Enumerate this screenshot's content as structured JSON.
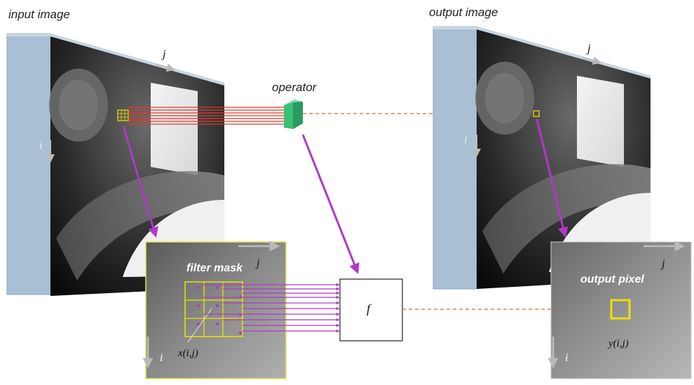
{
  "labels": {
    "input_image": "input image",
    "output_image": "output image",
    "operator": "operator",
    "filter_mask": "filter mask",
    "output_pixel": "output pixel",
    "function": "f",
    "input_pixel_symbol": "x(i,j)",
    "output_pixel_symbol": "y(i,j)",
    "axis_j": "j",
    "axis_i": "i"
  },
  "colors": {
    "frame_blue": "#a9bfd3",
    "frame_dark": "#8fa6bb",
    "mask_grid": "#e6e600",
    "arrow_magenta": "#b038c8",
    "ray_red": "#e03a2a",
    "ray_dashed": "#e87a55",
    "operator_green": "#3cbf78",
    "pixel_yellow": "#f0e000"
  },
  "icons": {
    "operator": "operator-prism-icon",
    "axis_arrow": "gray-axis-arrow-icon"
  }
}
